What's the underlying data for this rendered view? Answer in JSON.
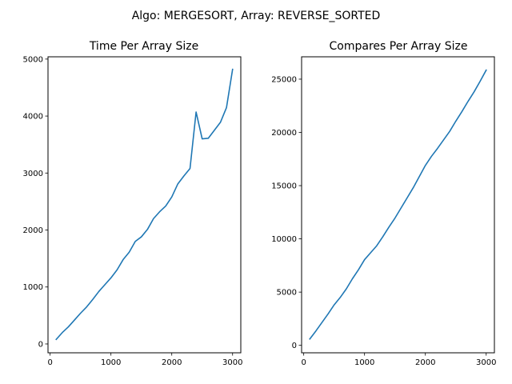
{
  "figure": {
    "suptitle": "Algo: MERGESORT, Array: REVERSE_SORTED"
  },
  "chart_data": [
    {
      "type": "line",
      "title": "Time Per Array Size",
      "xlabel": "",
      "ylabel": "",
      "xlim": [
        -35,
        3135
      ],
      "ylim": [
        -155,
        5040
      ],
      "xticks": [
        0,
        1000,
        2000,
        3000
      ],
      "yticks": [
        0,
        1000,
        2000,
        3000,
        4000,
        5000
      ],
      "grid": false,
      "color": "#1f77b4",
      "x": [
        100,
        200,
        300,
        400,
        500,
        600,
        700,
        800,
        900,
        1000,
        1100,
        1200,
        1300,
        1400,
        1500,
        1600,
        1700,
        1800,
        1900,
        2000,
        2100,
        2200,
        2300,
        2400,
        2500,
        2600,
        2700,
        2800,
        2900,
        3000
      ],
      "values": [
        80,
        200,
        300,
        420,
        540,
        650,
        780,
        920,
        1040,
        1160,
        1300,
        1480,
        1610,
        1800,
        1880,
        2010,
        2200,
        2320,
        2420,
        2580,
        2810,
        2950,
        3080,
        4070,
        3600,
        3610,
        3750,
        3890,
        4150,
        4820
      ]
    },
    {
      "type": "line",
      "title": "Compares Per Array Size",
      "xlabel": "",
      "ylabel": "",
      "xlim": [
        -35,
        3135
      ],
      "ylim": [
        -700,
        27100
      ],
      "xticks": [
        0,
        1000,
        2000,
        3000
      ],
      "yticks": [
        0,
        5000,
        10000,
        15000,
        20000,
        25000
      ],
      "grid": false,
      "color": "#1f77b4",
      "x": [
        100,
        200,
        300,
        400,
        500,
        600,
        700,
        800,
        900,
        1000,
        1100,
        1200,
        1300,
        1400,
        1500,
        1600,
        1700,
        1800,
        1900,
        2000,
        2100,
        2200,
        2300,
        2400,
        2500,
        2600,
        2700,
        2800,
        2900,
        3000
      ],
      "values": [
        600,
        1350,
        2150,
        2950,
        3800,
        4500,
        5300,
        6250,
        7100,
        8050,
        8700,
        9350,
        10200,
        11100,
        11950,
        12900,
        13850,
        14800,
        15850,
        16900,
        17750,
        18500,
        19300,
        20100,
        21050,
        21950,
        22900,
        23800,
        24800,
        25850
      ]
    }
  ]
}
